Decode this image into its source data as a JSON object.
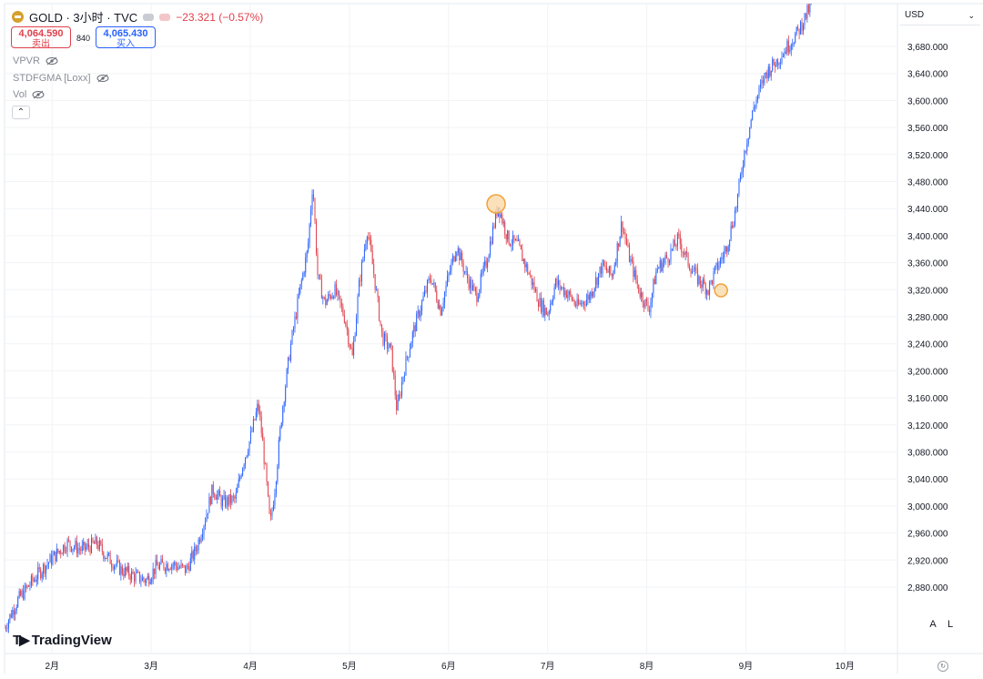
{
  "header": {
    "symbol": "GOLD · 3小时 · TVC",
    "change": "−23.321 (−0.57%)",
    "sell_price": "4,064.590",
    "sell_label": "卖出",
    "buy_price": "4,065.430",
    "buy_label": "买入",
    "spread": "840"
  },
  "indicators": [
    {
      "name": "VPVR"
    },
    {
      "name": "STDFGMA [Loxx]"
    },
    {
      "name": "Vol"
    }
  ],
  "currency": "USD",
  "branding": "TradingView",
  "axis_buttons": {
    "auto": "A",
    "log": "L"
  },
  "colors": {
    "up": "#2962ff",
    "down": "#e0414c",
    "marker": "#f2a13b",
    "marker_fill": "#f9d9a8"
  },
  "chart_data": {
    "type": "candlestick",
    "y_ticks": [
      3680,
      3640,
      3600,
      3560,
      3520,
      3480,
      3440,
      3400,
      3360,
      3320,
      3280,
      3240,
      3200,
      3160,
      3120,
      3080,
      3040,
      3000,
      2960,
      2920,
      2880
    ],
    "y_tick_labels": [
      "3,680.000",
      "3,640.000",
      "3,600.000",
      "3,560.000",
      "3,520.000",
      "3,480.000",
      "3,440.000",
      "3,400.000",
      "3,360.000",
      "3,320.000",
      "3,280.000",
      "3,240.000",
      "3,200.000",
      "3,160.000",
      "3,120.000",
      "3,080.000",
      "3,040.000",
      "3,000.000",
      "2,960.000",
      "2,920.000",
      "2,880.000"
    ],
    "ylim": [
      2825,
      3745
    ],
    "x_labels": [
      "2月",
      "3月",
      "4月",
      "5月",
      "6月",
      "7月",
      "8月",
      "9月",
      "10月"
    ],
    "x_label_months": [
      2,
      3,
      4,
      5,
      6,
      7,
      8,
      9,
      10
    ],
    "x_month_range": [
      1.52,
      10.53
    ],
    "price_path": [
      [
        1.52,
        2820
      ],
      [
        1.65,
        2860
      ],
      [
        1.78,
        2885
      ],
      [
        1.92,
        2910
      ],
      [
        2.05,
        2930
      ],
      [
        2.15,
        2945
      ],
      [
        2.3,
        2935
      ],
      [
        2.45,
        2945
      ],
      [
        2.55,
        2925
      ],
      [
        2.7,
        2905
      ],
      [
        2.85,
        2895
      ],
      [
        2.95,
        2890
      ],
      [
        3.05,
        2910
      ],
      [
        3.2,
        2915
      ],
      [
        3.35,
        2905
      ],
      [
        3.45,
        2935
      ],
      [
        3.55,
        2985
      ],
      [
        3.62,
        3025
      ],
      [
        3.72,
        3005
      ],
      [
        3.85,
        3010
      ],
      [
        3.92,
        3060
      ],
      [
        4.0,
        3100
      ],
      [
        4.08,
        3150
      ],
      [
        4.12,
        3100
      ],
      [
        4.16,
        3040
      ],
      [
        4.2,
        2970
      ],
      [
        4.25,
        3030
      ],
      [
        4.32,
        3140
      ],
      [
        4.4,
        3230
      ],
      [
        4.5,
        3320
      ],
      [
        4.58,
        3380
      ],
      [
        4.63,
        3480
      ],
      [
        4.68,
        3340
      ],
      [
        4.75,
        3300
      ],
      [
        4.85,
        3320
      ],
      [
        4.95,
        3280
      ],
      [
        5.03,
        3220
      ],
      [
        5.1,
        3330
      ],
      [
        5.18,
        3410
      ],
      [
        5.25,
        3340
      ],
      [
        5.33,
        3250
      ],
      [
        5.42,
        3230
      ],
      [
        5.48,
        3140
      ],
      [
        5.55,
        3200
      ],
      [
        5.63,
        3250
      ],
      [
        5.73,
        3300
      ],
      [
        5.82,
        3340
      ],
      [
        5.92,
        3290
      ],
      [
        6.0,
        3340
      ],
      [
        6.08,
        3385
      ],
      [
        6.18,
        3340
      ],
      [
        6.28,
        3310
      ],
      [
        6.38,
        3360
      ],
      [
        6.45,
        3410
      ],
      [
        6.5,
        3445
      ],
      [
        6.6,
        3395
      ],
      [
        6.7,
        3385
      ],
      [
        6.82,
        3340
      ],
      [
        6.92,
        3300
      ],
      [
        7.0,
        3285
      ],
      [
        7.08,
        3330
      ],
      [
        7.2,
        3315
      ],
      [
        7.3,
        3295
      ],
      [
        7.42,
        3310
      ],
      [
        7.55,
        3355
      ],
      [
        7.65,
        3340
      ],
      [
        7.75,
        3420
      ],
      [
        7.82,
        3370
      ],
      [
        7.92,
        3320
      ],
      [
        8.02,
        3290
      ],
      [
        8.1,
        3350
      ],
      [
        8.22,
        3370
      ],
      [
        8.32,
        3395
      ],
      [
        8.42,
        3360
      ],
      [
        8.52,
        3335
      ],
      [
        8.62,
        3320
      ],
      [
        8.7,
        3350
      ],
      [
        8.8,
        3380
      ],
      [
        8.9,
        3440
      ],
      [
        8.98,
        3520
      ],
      [
        9.08,
        3590
      ],
      [
        9.2,
        3640
      ],
      [
        9.32,
        3660
      ],
      [
        9.42,
        3680
      ],
      [
        9.52,
        3700
      ],
      [
        9.62,
        3730
      ],
      [
        9.7,
        3750
      ]
    ],
    "markers": [
      {
        "x": 6.48,
        "y": 3447
      },
      {
        "x": 8.75,
        "y": 3319
      }
    ]
  }
}
